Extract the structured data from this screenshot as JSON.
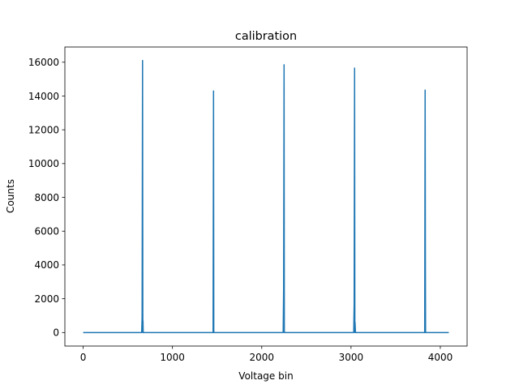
{
  "chart_data": {
    "type": "line",
    "title": "calibration",
    "xlabel": "Voltage bin",
    "ylabel": "Counts",
    "xlim": [
      -205,
      4300
    ],
    "ylim": [
      -800,
      16900
    ],
    "xticks": [
      0,
      1000,
      2000,
      3000,
      4000
    ],
    "yticks": [
      0,
      2000,
      4000,
      6000,
      8000,
      10000,
      12000,
      14000,
      16000
    ],
    "grid": false,
    "series": [
      {
        "color": "#1f77b4",
        "x": [
          0,
          655,
          660,
          665,
          668,
          670,
          672,
          675,
          680,
          1450,
          1455,
          1460,
          1463,
          1465,
          1470,
          2240,
          2245,
          2250,
          2253,
          2255,
          2260,
          3030,
          3035,
          3040,
          3043,
          3045,
          3050,
          3820,
          3825,
          3830,
          3833,
          3835,
          3840,
          4095
        ],
        "y": [
          0,
          0,
          900,
          16100,
          0,
          700,
          0,
          0,
          0,
          0,
          0,
          14300,
          0,
          0,
          0,
          0,
          2500,
          15850,
          0,
          0,
          0,
          0,
          1700,
          15650,
          0,
          600,
          0,
          0,
          0,
          14350,
          3800,
          0,
          0,
          0
        ]
      }
    ]
  }
}
